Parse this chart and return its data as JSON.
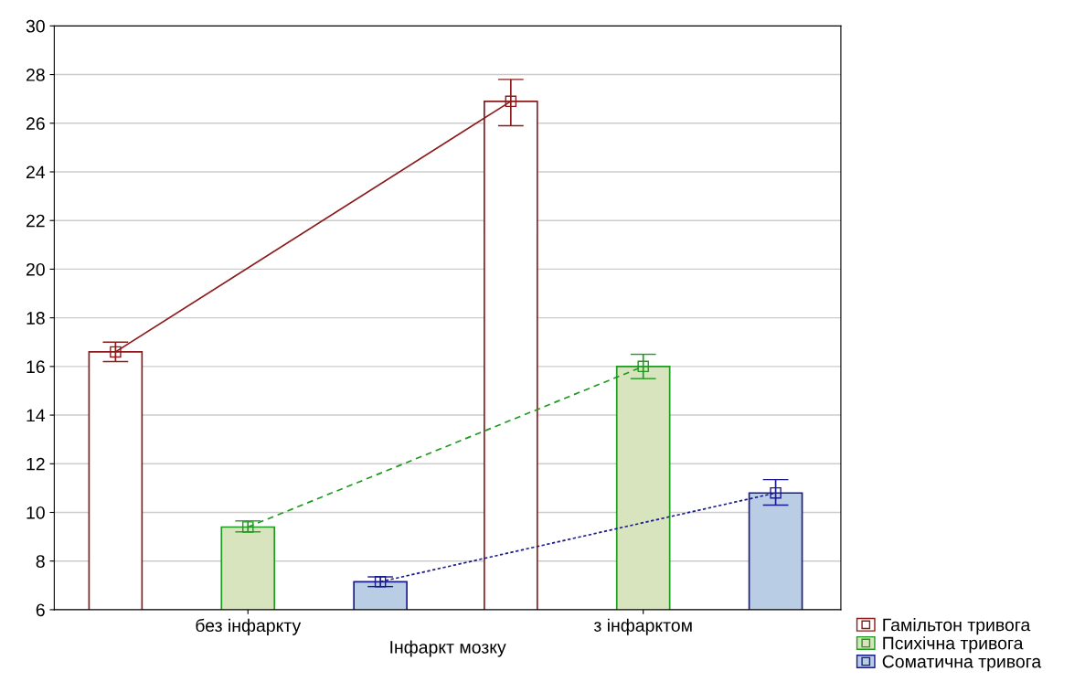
{
  "chart_data": {
    "type": "bar",
    "xlabel": "Інфаркт мозку",
    "categories": [
      "без інфаркту",
      "з інфарктом"
    ],
    "series": [
      {
        "name": "Гамільтон тривога",
        "color": "#8b1a1a",
        "colors": [
          "#ffffff",
          "#ffffff"
        ],
        "values": [
          16.6,
          26.9
        ]
      },
      {
        "name": "Психічна тривога",
        "color": "#1e9a1e",
        "colors": [
          "#d7e4bd",
          "#d7e4bd"
        ],
        "values": [
          9.4,
          16.0
        ]
      },
      {
        "name": "Соматична тривога",
        "color": "#1a1a8c",
        "colors": [
          "#b9cde5",
          "#b9cde5"
        ],
        "values": [
          7.15,
          10.8
        ]
      },
      {
        "type": "line",
        "color": "#8b1a1a",
        "values": [
          16.6,
          26.9
        ],
        "errors": [
          [
            16.2,
            17.0
          ],
          [
            25.9,
            27.8
          ]
        ],
        "line_style": "solid"
      },
      {
        "type": "line",
        "color": "#1e9a1e",
        "values": [
          9.4,
          16.0
        ],
        "errors": [
          [
            9.2,
            9.65
          ],
          [
            15.5,
            16.5
          ]
        ],
        "line_style": "dashed"
      },
      {
        "type": "line",
        "color": "#1a1a8c",
        "values": [
          7.15,
          10.8
        ],
        "errors": [
          [
            6.95,
            7.35
          ],
          [
            10.3,
            11.35
          ]
        ],
        "line_style": "dotted"
      }
    ],
    "ylim": [
      6,
      30
    ],
    "yticks": [
      6,
      8,
      10,
      12,
      14,
      16,
      18,
      20,
      22,
      24,
      26,
      28,
      30
    ],
    "grid": "y",
    "marker": "square",
    "legend": "bottom right"
  }
}
